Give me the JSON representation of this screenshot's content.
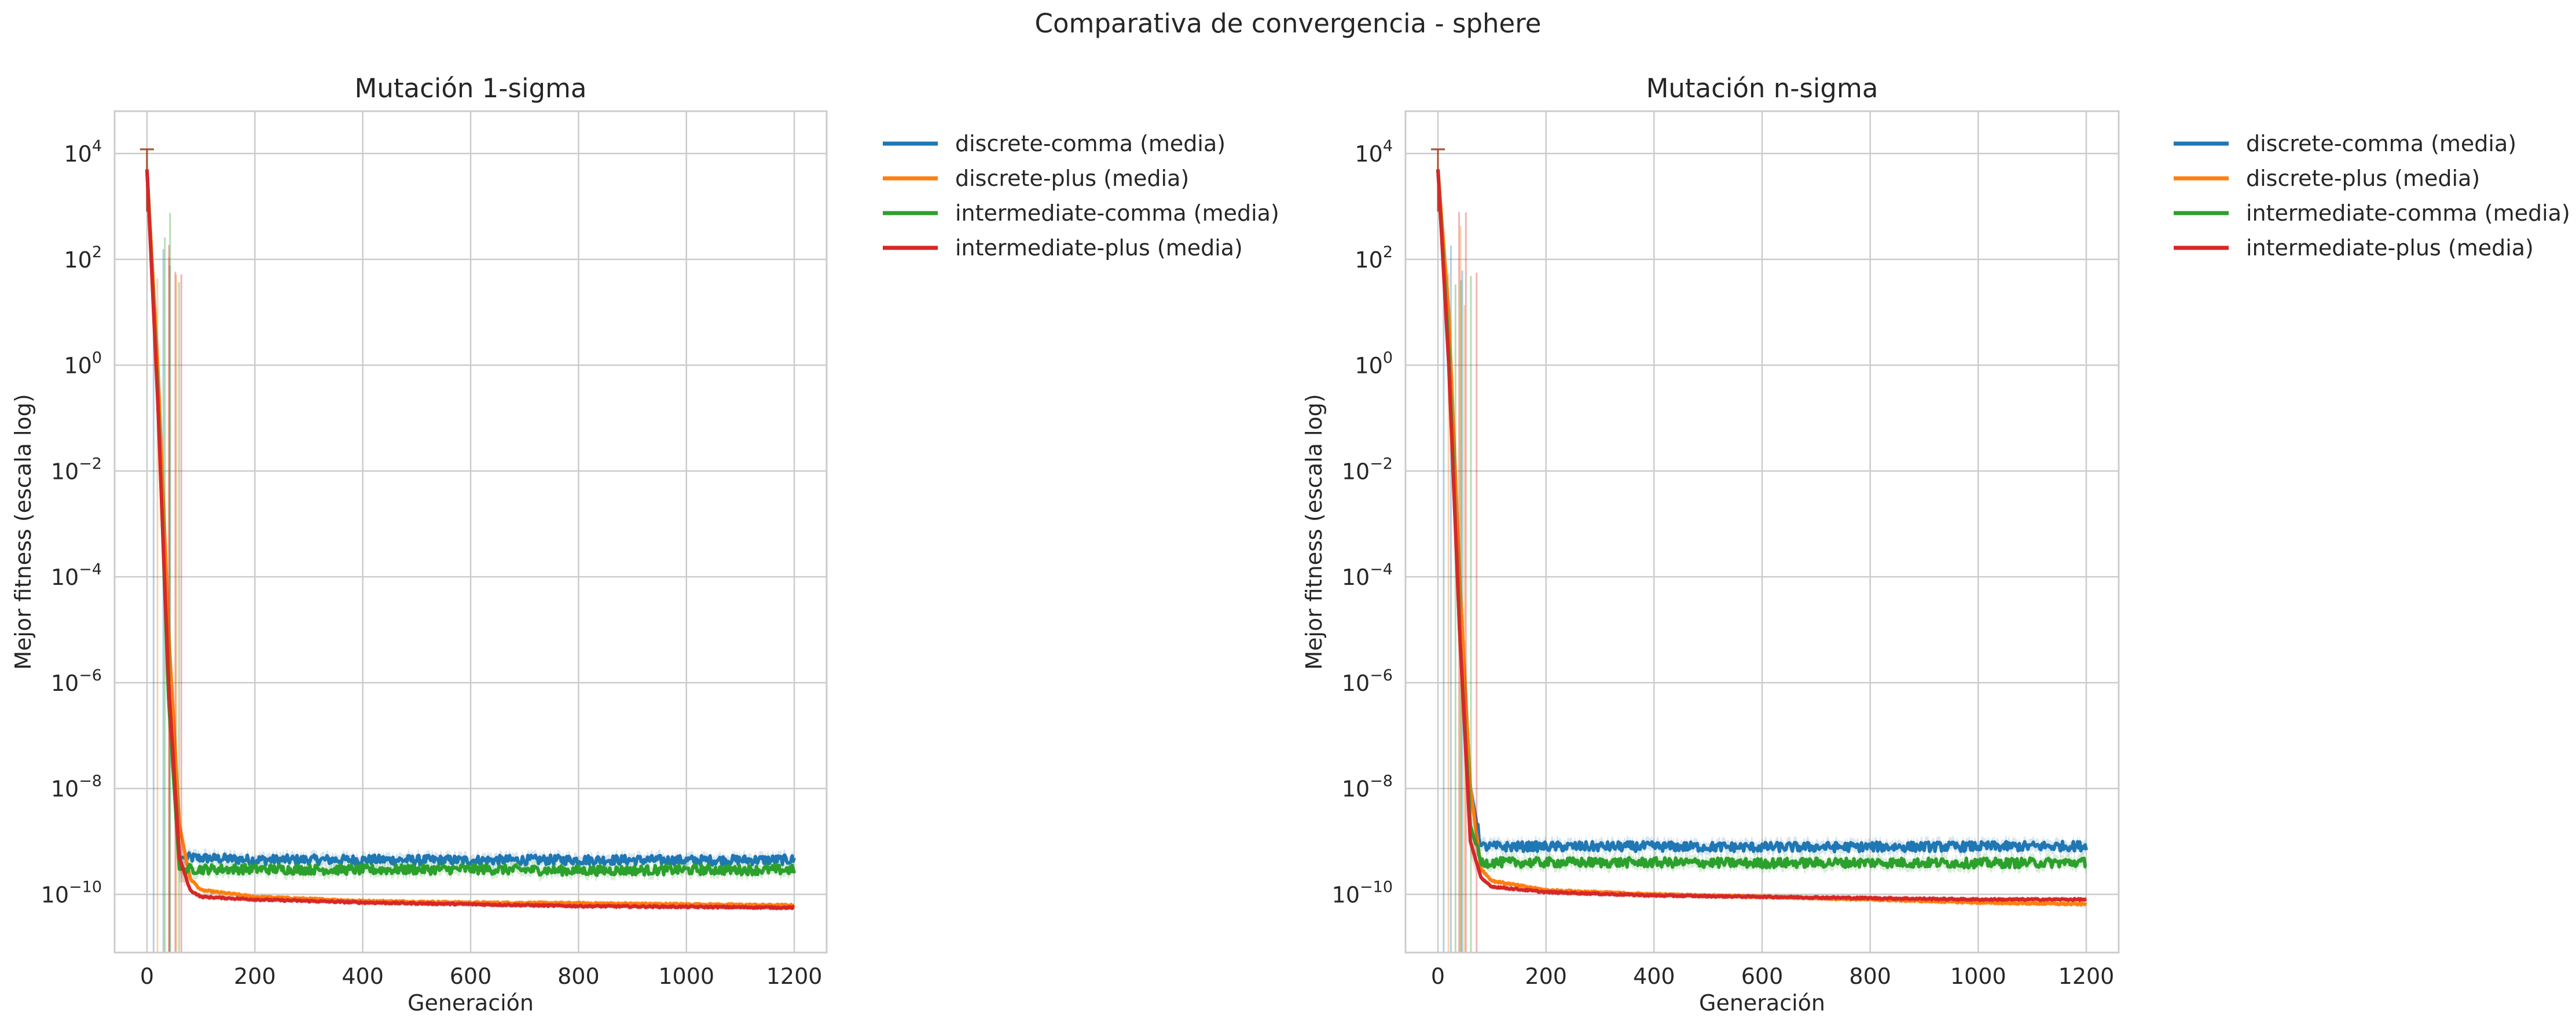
{
  "figure": {
    "title": "Comparativa de convergencia - sphere"
  },
  "legend_entries": [
    "discrete-comma (media)",
    "discrete-plus (media)",
    "intermediate-comma (media)",
    "intermediate-plus (media)"
  ],
  "colors": {
    "discrete-comma": "#1f77b4",
    "discrete-plus": "#ff7f0e",
    "intermediate-comma": "#2ca02c",
    "intermediate-plus": "#d62728",
    "grid": "#cccccc",
    "axes_edge": "#cccccc",
    "text": "#262626"
  },
  "chart_data": [
    {
      "type": "line",
      "title": "Mutación 1-sigma",
      "xlabel": "Generación",
      "ylabel": "Mejor fitness (escala log)",
      "xscale": "linear",
      "yscale": "log",
      "xlim": [
        -60,
        1260
      ],
      "ylim_log10": [
        -11.1,
        4.8
      ],
      "xticks": [
        0,
        200,
        400,
        600,
        800,
        1000,
        1200
      ],
      "yticks_exp": [
        4,
        2,
        0,
        -2,
        -4,
        -6,
        -8,
        -10
      ],
      "grid": true,
      "legend_position": "outside-right",
      "shaded_band": "min-max range per series",
      "series": [
        {
          "name": "discrete-comma (media)",
          "color": "#1f77b4",
          "points": [
            [
              0,
              5000
            ],
            [
              20,
              0.5
            ],
            [
              40,
              1e-06
            ],
            [
              60,
              5e-10
            ],
            [
              200,
              4.5e-10
            ],
            [
              400,
              4.5e-10
            ],
            [
              600,
              4.4e-10
            ],
            [
              800,
              4.5e-10
            ],
            [
              1000,
              4.4e-10
            ],
            [
              1200,
              4.5e-10
            ]
          ]
        },
        {
          "name": "discrete-plus (media)",
          "color": "#ff7f0e",
          "points": [
            [
              0,
              5000
            ],
            [
              20,
              1
            ],
            [
              40,
              1e-05
            ],
            [
              60,
              2e-09
            ],
            [
              80,
              2e-10
            ],
            [
              100,
              1.2e-10
            ],
            [
              200,
              9e-11
            ],
            [
              400,
              7.5e-11
            ],
            [
              600,
              7e-11
            ],
            [
              800,
              6.8e-11
            ],
            [
              1000,
              6.5e-11
            ],
            [
              1200,
              6.2e-11
            ]
          ]
        },
        {
          "name": "intermediate-comma (media)",
          "color": "#2ca02c",
          "points": [
            [
              0,
              5000
            ],
            [
              20,
              0.3
            ],
            [
              40,
              5e-07
            ],
            [
              60,
              3e-10
            ],
            [
              200,
              3e-10
            ],
            [
              400,
              2.9e-10
            ],
            [
              600,
              3e-10
            ],
            [
              800,
              2.8e-10
            ],
            [
              1000,
              2.9e-10
            ],
            [
              1200,
              2.9e-10
            ]
          ]
        },
        {
          "name": "intermediate-plus (media)",
          "color": "#d62728",
          "points": [
            [
              0,
              5000
            ],
            [
              20,
              0.2
            ],
            [
              40,
              1e-06
            ],
            [
              60,
              5e-10
            ],
            [
              80,
              1.2e-10
            ],
            [
              100,
              9e-11
            ],
            [
              200,
              8e-11
            ],
            [
              400,
              7e-11
            ],
            [
              600,
              6.5e-11
            ],
            [
              800,
              6e-11
            ],
            [
              1000,
              5.8e-11
            ],
            [
              1200,
              5.6e-11
            ]
          ]
        }
      ]
    },
    {
      "type": "line",
      "title": "Mutación n-sigma",
      "xlabel": "Generación",
      "ylabel": "Mejor fitness (escala log)",
      "xscale": "linear",
      "yscale": "log",
      "xlim": [
        -60,
        1260
      ],
      "ylim_log10": [
        -11.1,
        4.8
      ],
      "xticks": [
        0,
        200,
        400,
        600,
        800,
        1000,
        1200
      ],
      "yticks_exp": [
        4,
        2,
        0,
        -2,
        -4,
        -6,
        -8,
        -10
      ],
      "grid": true,
      "legend_position": "outside-right",
      "shaded_band": "min-max range per series",
      "series": [
        {
          "name": "discrete-comma (media)",
          "color": "#1f77b4",
          "points": [
            [
              0,
              5000
            ],
            [
              20,
              5
            ],
            [
              40,
              0.0001
            ],
            [
              60,
              1e-08
            ],
            [
              80,
              8e-10
            ],
            [
              200,
              8e-10
            ],
            [
              400,
              8e-10
            ],
            [
              600,
              7.8e-10
            ],
            [
              800,
              7.9e-10
            ],
            [
              1000,
              8e-10
            ],
            [
              1200,
              8.2e-10
            ]
          ]
        },
        {
          "name": "discrete-plus (media)",
          "color": "#ff7f0e",
          "points": [
            [
              0,
              5000
            ],
            [
              20,
              10
            ],
            [
              40,
              0.0001
            ],
            [
              60,
              1e-08
            ],
            [
              80,
              3e-10
            ],
            [
              100,
              1.8e-10
            ],
            [
              200,
              1.2e-10
            ],
            [
              400,
              1e-10
            ],
            [
              600,
              9e-11
            ],
            [
              800,
              8e-11
            ],
            [
              1000,
              7e-11
            ],
            [
              1200,
              6.5e-11
            ]
          ]
        },
        {
          "name": "intermediate-comma (media)",
          "color": "#2ca02c",
          "points": [
            [
              0,
              5000
            ],
            [
              20,
              2
            ],
            [
              40,
              1e-05
            ],
            [
              60,
              2e-09
            ],
            [
              80,
              4e-10
            ],
            [
              200,
              4e-10
            ],
            [
              400,
              4e-10
            ],
            [
              600,
              3.9e-10
            ],
            [
              800,
              4e-10
            ],
            [
              1000,
              3.9e-10
            ],
            [
              1200,
              4e-10
            ]
          ]
        },
        {
          "name": "intermediate-plus (media)",
          "color": "#d62728",
          "points": [
            [
              0,
              5000
            ],
            [
              20,
              1
            ],
            [
              40,
              1e-05
            ],
            [
              60,
              1e-09
            ],
            [
              80,
              2e-10
            ],
            [
              100,
              1.4e-10
            ],
            [
              200,
              1.1e-10
            ],
            [
              400,
              9.5e-11
            ],
            [
              600,
              9e-11
            ],
            [
              800,
              8.5e-11
            ],
            [
              1000,
              8e-11
            ],
            [
              1200,
              8e-11
            ]
          ]
        }
      ]
    }
  ]
}
